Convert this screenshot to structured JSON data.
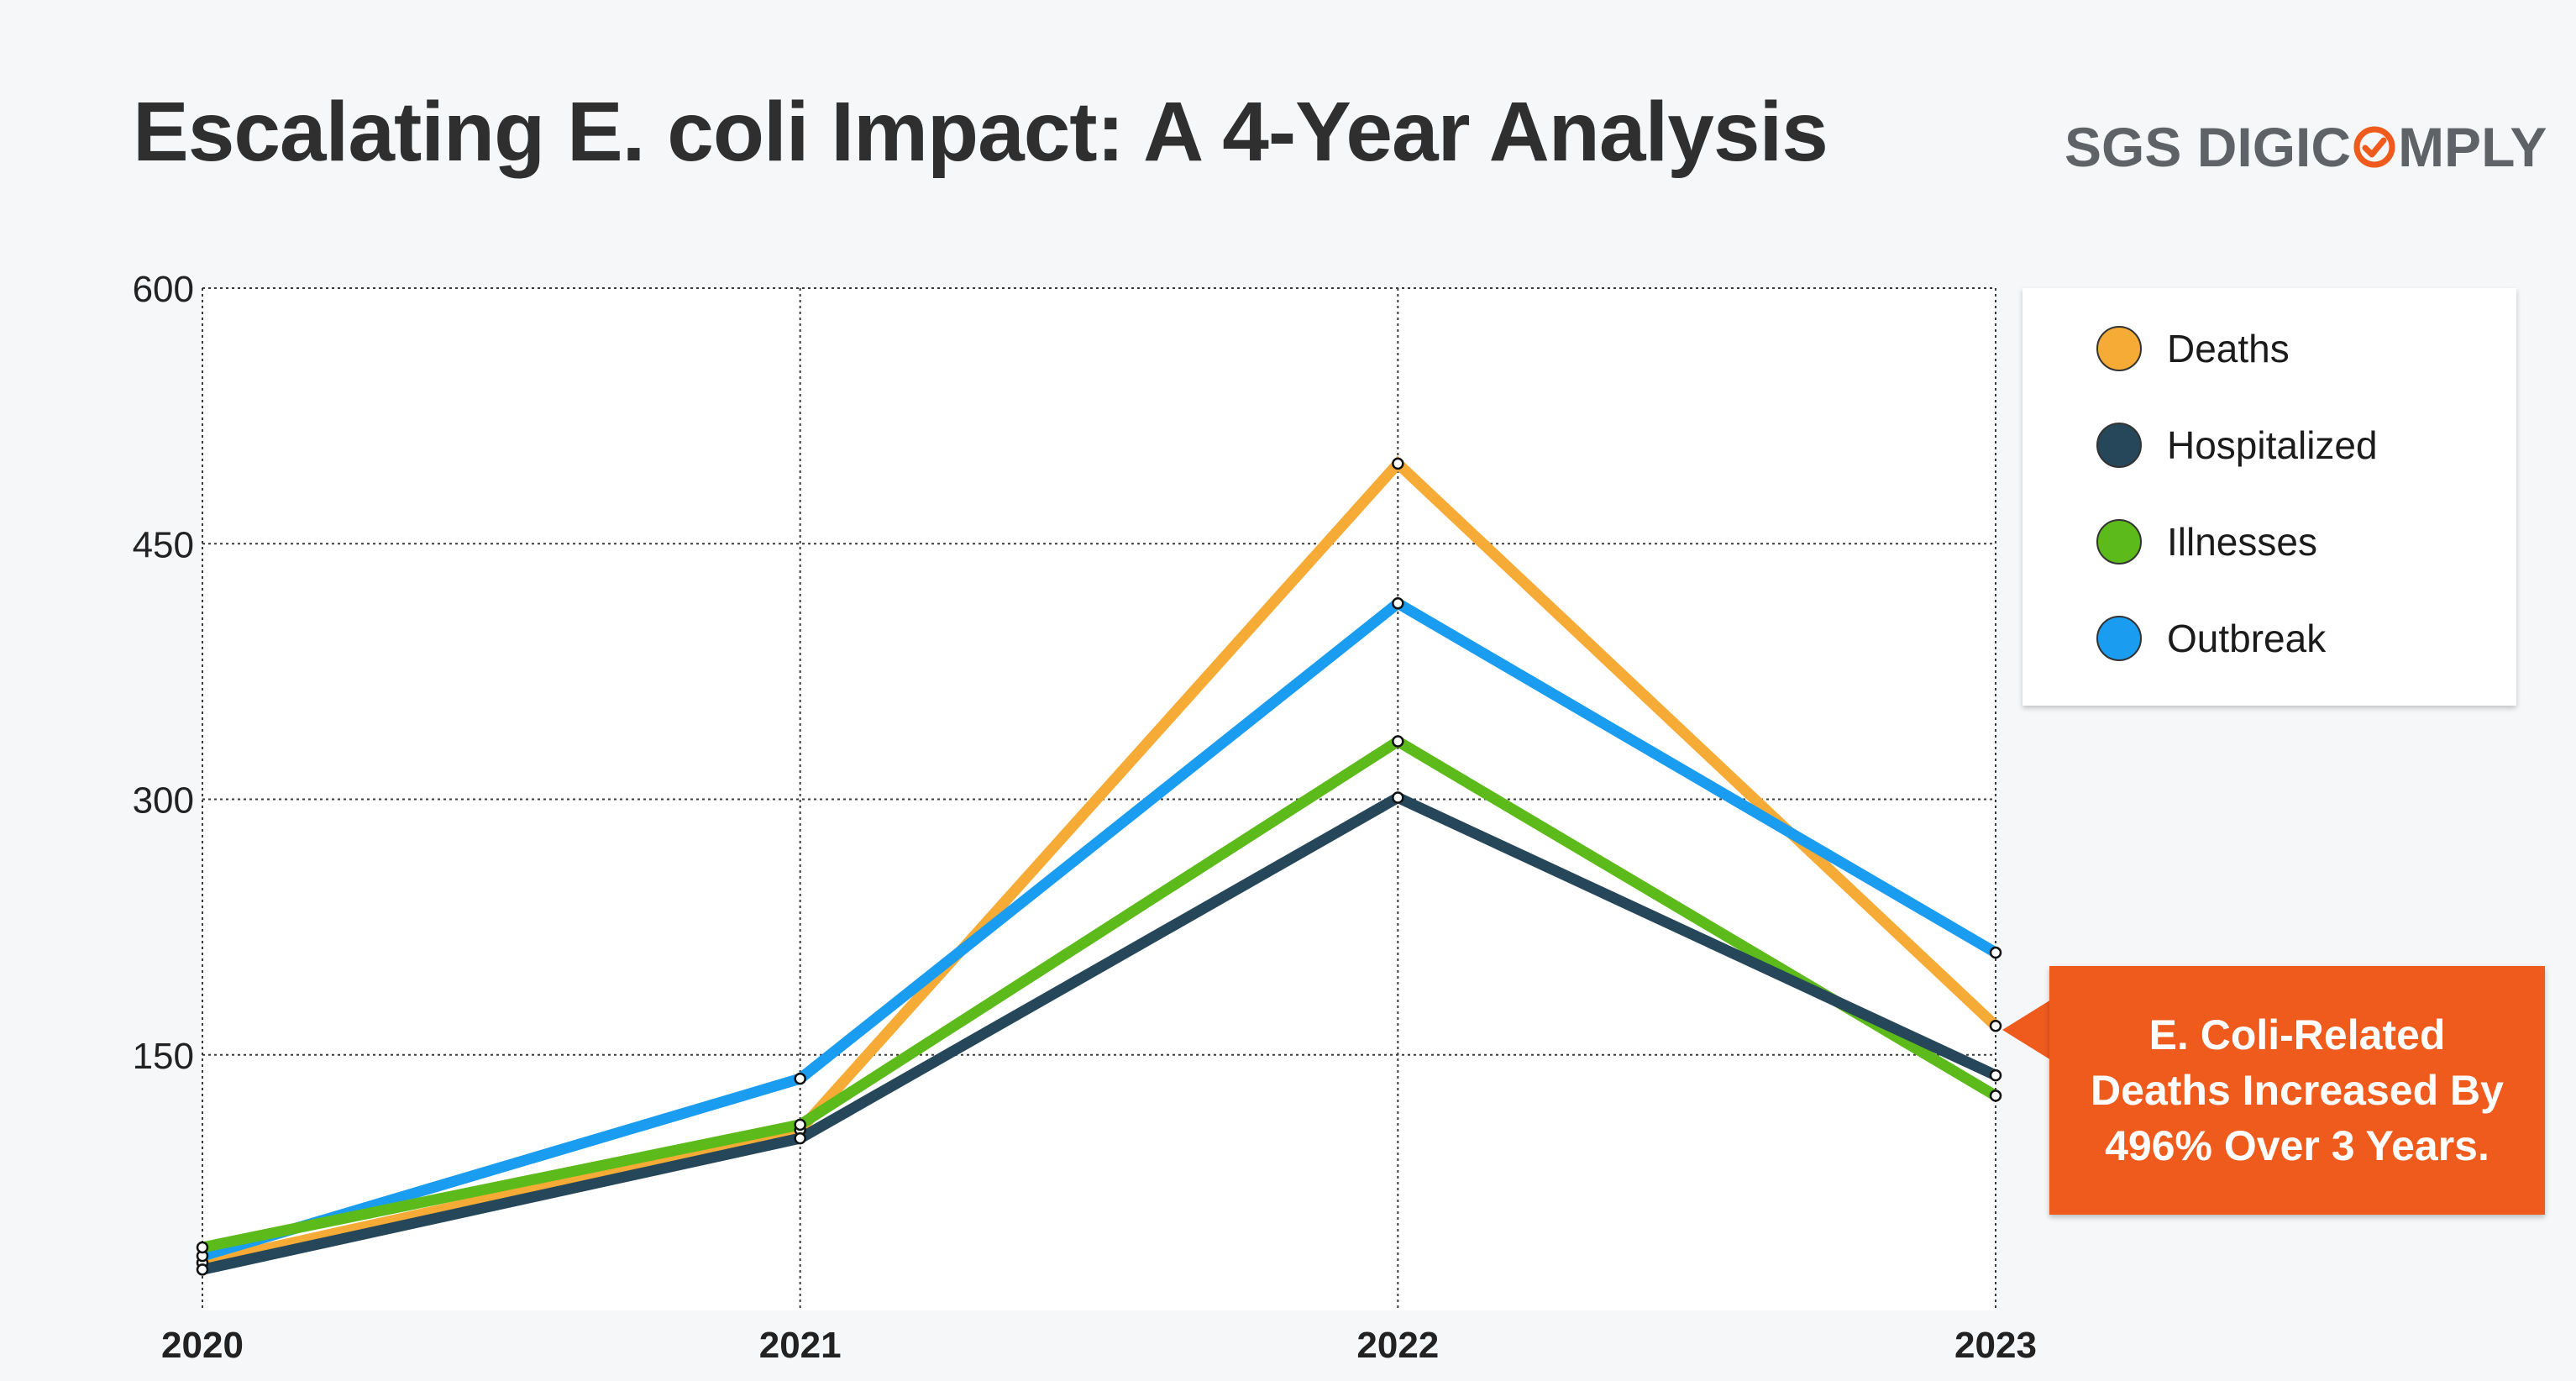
{
  "title": "Escalating E. coli Impact: A 4-Year Analysis",
  "logo": {
    "text_before": "SGS DIGIC",
    "text_after": "MPLY",
    "mark_icon": "check-circle-icon",
    "text_color": "#5f6368",
    "mark_color": "#ef5a1d"
  },
  "callout": {
    "lines": [
      "E. Coli-Related",
      "Deaths Increased By",
      "496% Over 3 Years."
    ],
    "color": "#ef5a1d"
  },
  "chart_data": {
    "type": "line",
    "title": "Escalating E. coli Impact: A 4-Year Analysis",
    "xlabel": "",
    "ylabel": "",
    "x": [
      "2020",
      "2021",
      "2022",
      "2023"
    ],
    "ylim": [
      0,
      600
    ],
    "yticks": [
      150,
      300,
      450,
      600
    ],
    "grid": true,
    "legend_position": "top-right",
    "series": [
      {
        "name": "Deaths",
        "color": "#f5ab35",
        "values": [
          28,
          106,
          497,
          167
        ]
      },
      {
        "name": "Hospitalized",
        "color": "#26475a",
        "values": [
          24,
          101,
          301,
          138
        ]
      },
      {
        "name": "Illnesses",
        "color": "#5cbb1a",
        "values": [
          37,
          109,
          334,
          126
        ]
      },
      {
        "name": "Outbreak",
        "color": "#1a9cf0",
        "values": [
          32,
          136,
          415,
          210
        ]
      }
    ]
  }
}
